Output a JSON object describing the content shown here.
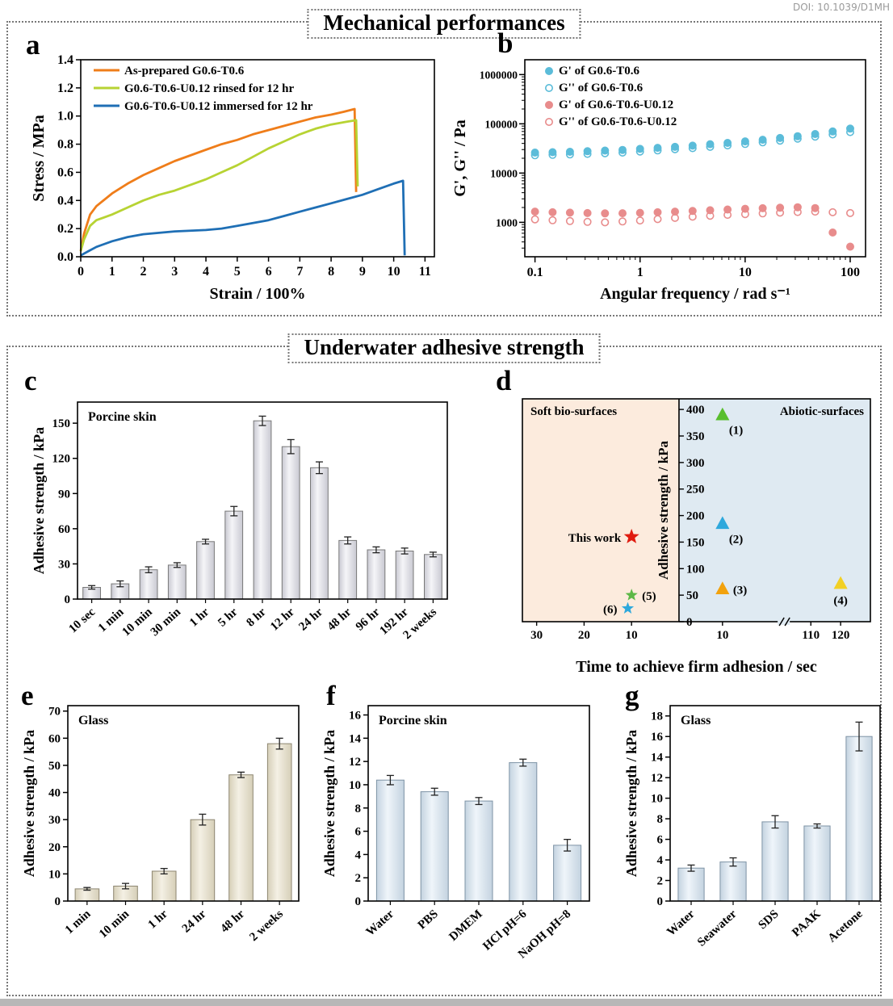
{
  "doi_text": "DOI: 10.1039/D1MH",
  "sections": {
    "mechanical": {
      "title": "Mechanical performances"
    },
    "adhesive": {
      "title": "Underwater adhesive strength"
    }
  },
  "chart_data": [
    {
      "id": "a",
      "panel_letter": "a",
      "type": "line",
      "xlabel": "Strain / 100%",
      "ylabel": "Stress / MPa",
      "xlim": [
        0,
        11.3
      ],
      "ylim": [
        0,
        1.4
      ],
      "xticks": [
        0,
        1,
        2,
        3,
        4,
        5,
        6,
        7,
        8,
        9,
        10,
        11
      ],
      "yticks": [
        0,
        0.2,
        0.4,
        0.6,
        0.8,
        1,
        1.2,
        1.4
      ],
      "ytick_decimals": 1,
      "series": [
        {
          "name": "As-prepared G0.6-T0.6",
          "color": "#ef7d1a",
          "points": [
            [
              0,
              0.04
            ],
            [
              0.1,
              0.16
            ],
            [
              0.3,
              0.3
            ],
            [
              0.5,
              0.36
            ],
            [
              1,
              0.45
            ],
            [
              1.5,
              0.52
            ],
            [
              2,
              0.58
            ],
            [
              2.5,
              0.63
            ],
            [
              3,
              0.68
            ],
            [
              3.5,
              0.72
            ],
            [
              4,
              0.76
            ],
            [
              4.5,
              0.8
            ],
            [
              5,
              0.83
            ],
            [
              5.5,
              0.87
            ],
            [
              6,
              0.9
            ],
            [
              6.5,
              0.93
            ],
            [
              7,
              0.96
            ],
            [
              7.5,
              0.99
            ],
            [
              8,
              1.01
            ],
            [
              8.4,
              1.03
            ],
            [
              8.75,
              1.05
            ],
            [
              8.8,
              0.46
            ]
          ]
        },
        {
          "name": "G0.6-T0.6-U0.12 rinsed for 12 hr",
          "color": "#b7d333",
          "points": [
            [
              0,
              0.04
            ],
            [
              0.1,
              0.12
            ],
            [
              0.3,
              0.22
            ],
            [
              0.5,
              0.26
            ],
            [
              1,
              0.3
            ],
            [
              1.5,
              0.35
            ],
            [
              2,
              0.4
            ],
            [
              2.5,
              0.44
            ],
            [
              3,
              0.47
            ],
            [
              3.5,
              0.51
            ],
            [
              4,
              0.55
            ],
            [
              4.5,
              0.6
            ],
            [
              5,
              0.65
            ],
            [
              5.5,
              0.71
            ],
            [
              6,
              0.77
            ],
            [
              6.5,
              0.82
            ],
            [
              7,
              0.87
            ],
            [
              7.5,
              0.91
            ],
            [
              8,
              0.94
            ],
            [
              8.5,
              0.96
            ],
            [
              8.8,
              0.97
            ],
            [
              8.85,
              0.5
            ]
          ]
        },
        {
          "name": "G0.6-T0.6-U0.12 immersed for 12 hr",
          "color": "#1f6fb5",
          "points": [
            [
              0,
              0.01
            ],
            [
              0.25,
              0.04
            ],
            [
              0.5,
              0.07
            ],
            [
              1,
              0.11
            ],
            [
              1.5,
              0.14
            ],
            [
              2,
              0.16
            ],
            [
              2.5,
              0.17
            ],
            [
              3,
              0.18
            ],
            [
              4,
              0.19
            ],
            [
              4.5,
              0.2
            ],
            [
              5,
              0.22
            ],
            [
              5.5,
              0.24
            ],
            [
              6,
              0.26
            ],
            [
              6.5,
              0.29
            ],
            [
              7,
              0.32
            ],
            [
              7.5,
              0.35
            ],
            [
              8,
              0.38
            ],
            [
              8.5,
              0.41
            ],
            [
              9,
              0.44
            ],
            [
              9.5,
              0.48
            ],
            [
              10,
              0.52
            ],
            [
              10.3,
              0.54
            ],
            [
              10.35,
              0.01
            ]
          ]
        }
      ]
    },
    {
      "id": "b",
      "panel_letter": "b",
      "type": "logscatter",
      "xlabel": "Angular frequency / rad s⁻¹",
      "ylabel": "G', G'' / Pa",
      "xlim": [
        0.08,
        140
      ],
      "ylim": [
        200,
        2000000
      ],
      "xticks": [
        0.1,
        1,
        10,
        100
      ],
      "yticks": [
        1000,
        10000,
        100000,
        1000000
      ],
      "freq": [
        0.1,
        0.147,
        0.215,
        0.316,
        0.464,
        0.681,
        1,
        1.47,
        2.15,
        3.16,
        4.64,
        6.81,
        10,
        14.7,
        21.5,
        31.6,
        46.4,
        68.1,
        100
      ],
      "series": [
        {
          "name": "G' of G0.6-T0.6",
          "color": "#5bbcd9",
          "filled": true,
          "values": [
            26000,
            26500,
            27000,
            27800,
            28600,
            29500,
            31000,
            32500,
            34000,
            36000,
            38500,
            41000,
            44000,
            47500,
            51500,
            56000,
            62000,
            70000,
            80000
          ]
        },
        {
          "name": "G'' of G0.6-T0.6",
          "color": "#5bbcd9",
          "filled": false,
          "values": [
            23000,
            23400,
            23900,
            24500,
            25200,
            26000,
            27400,
            28800,
            30400,
            32000,
            34000,
            36500,
            39000,
            42000,
            45500,
            50000,
            55000,
            61000,
            68000
          ]
        },
        {
          "name": "G' of G0.6-T0.6-U0.12",
          "color": "#e88c8c",
          "filled": true,
          "values": [
            1650,
            1600,
            1570,
            1540,
            1520,
            1530,
            1560,
            1600,
            1650,
            1700,
            1760,
            1820,
            1880,
            1930,
            1980,
            2020,
            1950,
            620,
            320
          ]
        },
        {
          "name": "G'' of G0.6-T0.6-U0.12",
          "color": "#e88c8c",
          "filled": false,
          "values": [
            1150,
            1100,
            1060,
            1020,
            1000,
            1040,
            1090,
            1160,
            1230,
            1300,
            1360,
            1420,
            1470,
            1520,
            1570,
            1620,
            1650,
            1600,
            1540
          ]
        }
      ]
    },
    {
      "id": "c",
      "panel_letter": "c",
      "type": "bar",
      "annotation": "Porcine skin",
      "ylabel": "Adhesive strength / kPa",
      "yticks": [
        0,
        30,
        60,
        90,
        120,
        150
      ],
      "ylim": [
        0,
        168
      ],
      "categories": [
        "10 sec",
        "1 min",
        "10 min",
        "30 min",
        "1 hr",
        "5 hr",
        "8 hr",
        "12 hr",
        "24 hr",
        "48 hr",
        "96 hr",
        "192 hr",
        "2 weeks"
      ],
      "values": [
        10,
        13,
        25,
        29,
        49,
        75,
        152,
        130,
        112,
        50,
        42,
        41,
        38
      ],
      "errors": [
        1.5,
        2.5,
        2.5,
        2,
        2,
        4,
        4,
        6,
        5,
        3,
        2.5,
        2.5,
        2
      ],
      "bar_center": "#f5f5f8",
      "bar_shade": "#c9c9d2",
      "bar_stroke": "#787878"
    },
    {
      "id": "d",
      "panel_letter": "d",
      "type": "dual",
      "xlabel": "Time to achieve firm adhesion / sec",
      "ylabel": "Adhesive strength / kPa",
      "ylim": [
        0,
        420
      ],
      "yticks": [
        0,
        50,
        100,
        150,
        200,
        250,
        300,
        350,
        400
      ],
      "left": {
        "label": "Soft bio-surfaces",
        "bg": "#fcebdd",
        "label_color": "#7a2e1d",
        "xticks": [
          30,
          20,
          10
        ],
        "xmax": 33
      },
      "right": {
        "label": "Abiotic-surfaces",
        "bg": "#dfeaf2",
        "label_color": "#16324c",
        "xticks_a": [
          10
        ],
        "xticks_b": [
          110,
          120
        ]
      },
      "points": [
        {
          "region": "left",
          "x": 10,
          "y": 160,
          "marker": "star",
          "color": "#e01b0f",
          "size": 10,
          "label": "This work",
          "label_side": "left",
          "label_color": "#e01b0f"
        },
        {
          "region": "left",
          "x": 10,
          "y": 50,
          "marker": "star",
          "color": "#5cb847",
          "size": 8,
          "label": "(5)",
          "label_side": "right",
          "label_color": "#000000"
        },
        {
          "region": "left",
          "x": 10.8,
          "y": 25,
          "marker": "star",
          "color": "#2ea8dc",
          "size": 8,
          "label": "(6)",
          "label_side": "left",
          "label_color": "#000000"
        },
        {
          "region": "right",
          "x": 10,
          "y": 390,
          "marker": "triangle",
          "color": "#58be2e",
          "size": 9,
          "label": "(1)",
          "label_side": "below",
          "label_color": "#000000"
        },
        {
          "region": "right",
          "x": 10,
          "y": 185,
          "marker": "triangle",
          "color": "#2ea8dc",
          "size": 9,
          "label": "(2)",
          "label_side": "below",
          "label_color": "#000000"
        },
        {
          "region": "right",
          "x": 10,
          "y": 62,
          "marker": "triangle",
          "color": "#f2a20d",
          "size": 9,
          "label": "(3)",
          "label_side": "right",
          "label_color": "#000000"
        },
        {
          "region": "right",
          "x": 120,
          "y": 72,
          "marker": "triangle",
          "color": "#f2d024",
          "size": 9,
          "label": "(4)",
          "label_side": "below-center",
          "label_color": "#000000"
        }
      ]
    },
    {
      "id": "e",
      "panel_letter": "e",
      "type": "bar",
      "annotation": "Glass",
      "ylabel": "Adhesive strength / kPa",
      "yticks": [
        0,
        10,
        20,
        30,
        40,
        50,
        60,
        70
      ],
      "ylim": [
        0,
        72
      ],
      "categories": [
        "1 min",
        "10 min",
        "1 hr",
        "24 hr",
        "48 hr",
        "2 weeks"
      ],
      "values": [
        4.5,
        5.5,
        11,
        30,
        46.5,
        58
      ],
      "errors": [
        0.5,
        1,
        1,
        2,
        1,
        2
      ],
      "bar_center": "#f4f0e4",
      "bar_shade": "#d6cfb8",
      "bar_stroke": "#8d8671"
    },
    {
      "id": "f",
      "panel_letter": "f",
      "type": "bar",
      "annotation": "Porcine skin",
      "ylabel": "Adhesive strength / kPa",
      "yticks": [
        0,
        2,
        4,
        6,
        8,
        10,
        12,
        14,
        16
      ],
      "ylim": [
        0,
        16.8
      ],
      "categories": [
        "Water",
        "PBS",
        "DMEM",
        "HCl pH=6",
        "NaOH pH=8"
      ],
      "values": [
        10.4,
        9.4,
        8.6,
        11.9,
        4.8
      ],
      "errors": [
        0.4,
        0.3,
        0.3,
        0.3,
        0.5
      ],
      "bar_center": "#eff5fa",
      "bar_shade": "#c4d3e0",
      "bar_stroke": "#7e93a5"
    },
    {
      "id": "g",
      "panel_letter": "g",
      "type": "bar",
      "annotation": "Glass",
      "ylabel": "Adhesive strength / kPa",
      "yticks": [
        0,
        2,
        4,
        6,
        8,
        10,
        12,
        14,
        16,
        18
      ],
      "ylim": [
        0,
        19
      ],
      "categories": [
        "Water",
        "Seawater",
        "SDS",
        "PAAK",
        "Acetone"
      ],
      "values": [
        3.2,
        3.8,
        7.7,
        7.3,
        16
      ],
      "errors": [
        0.3,
        0.4,
        0.6,
        0.2,
        1.4
      ],
      "bar_center": "#eff5fa",
      "bar_shade": "#c4d3e0",
      "bar_stroke": "#7e93a5"
    }
  ]
}
